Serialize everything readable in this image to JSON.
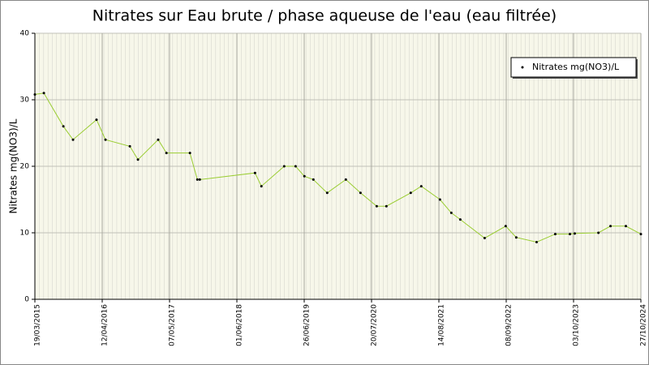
{
  "chart_data": {
    "type": "line",
    "title": "Nitrates sur Eau brute / phase aqueuse de l'eau (eau filtrée)",
    "y_label": "Nitrates mg(NO3)/L",
    "x": [
      "19/03/2015",
      "10/05/2015",
      "31/08/2015",
      "26/10/2015",
      "10/03/2016",
      "01/05/2016",
      "19/09/2016",
      "05/11/2016",
      "02/03/2017",
      "19/04/2017",
      "02/09/2017",
      "15/10/2017",
      "29/10/2017",
      "14/09/2018",
      "21/10/2018",
      "02/03/2019",
      "07/05/2019",
      "27/06/2019",
      "18/08/2019",
      "06/11/2019",
      "22/02/2020",
      "17/05/2020",
      "19/08/2020",
      "14/10/2020",
      "04/03/2021",
      "04/05/2021",
      "20/08/2021",
      "25/10/2021",
      "16/12/2021",
      "06/05/2022",
      "05/09/2022",
      "05/11/2022",
      "03/03/2023",
      "19/06/2023",
      "12/09/2023",
      "10/10/2023",
      "24/02/2024",
      "04/05/2024",
      "01/08/2024",
      "27/10/2024"
    ],
    "series": [
      {
        "name": "Nitrates mg(NO3)/L",
        "color": "#9acd32",
        "values": [
          30.8,
          31,
          26,
          24,
          27,
          24,
          23,
          21,
          24,
          22,
          22,
          18,
          18,
          19,
          17,
          20,
          20,
          18.5,
          18,
          16,
          18,
          16,
          14,
          14,
          16,
          17,
          15,
          13,
          12,
          9.2,
          11,
          9.3,
          8.6,
          9.8,
          9.8,
          9.9,
          10,
          11,
          11,
          9.8
        ]
      }
    ],
    "xlim": [
      "19/03/2015",
      "27/10/2024"
    ],
    "xticks": [
      "19/03/2015",
      "12/04/2016",
      "07/05/2017",
      "01/06/2018",
      "26/06/2019",
      "20/07/2020",
      "14/08/2021",
      "08/09/2022",
      "03/10/2023",
      "27/10/2024"
    ],
    "ylim": [
      0,
      40
    ],
    "yticks": [
      0,
      10,
      20,
      30,
      40
    ],
    "grid": true,
    "legend": "top-right"
  }
}
